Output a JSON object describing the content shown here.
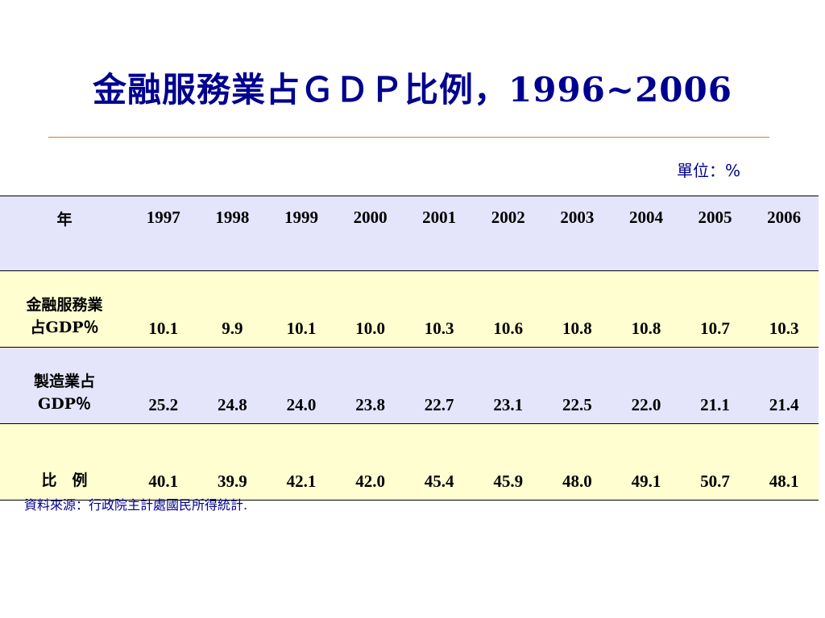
{
  "title": "金融服務業占ＧＤＰ比例，1996~2006",
  "unit": "單位：%",
  "table": {
    "header_label": "年",
    "years": [
      "1997",
      "1998",
      "1999",
      "2000",
      "2001",
      "2002",
      "2003",
      "2004",
      "2005",
      "2006"
    ],
    "rows": [
      {
        "label_line1": "金融服務業",
        "label_line2": "占GDP％",
        "values": [
          "10.1",
          "9.9",
          "10.1",
          "10.0",
          "10.3",
          "10.6",
          "10.8",
          "10.8",
          "10.7",
          "10.3"
        ]
      },
      {
        "label_line1": "製造業占",
        "label_line2": "GDP％",
        "values": [
          "25.2",
          "24.8",
          "24.0",
          "23.8",
          "22.7",
          "23.1",
          "22.5",
          "22.0",
          "21.1",
          "21.4"
        ]
      },
      {
        "label_line1": "比　例",
        "label_line2": "",
        "values": [
          "40.1",
          "39.9",
          "42.1",
          "42.0",
          "45.4",
          "45.9",
          "48.0",
          "49.1",
          "50.7",
          "48.1"
        ]
      }
    ]
  },
  "source": "資料來源：行政院主計處國民所得統計.",
  "colors": {
    "title": "#000090",
    "rule": "#e07a1c",
    "row_lavender": "#e4e4fb",
    "row_yellow": "#fefed0"
  }
}
